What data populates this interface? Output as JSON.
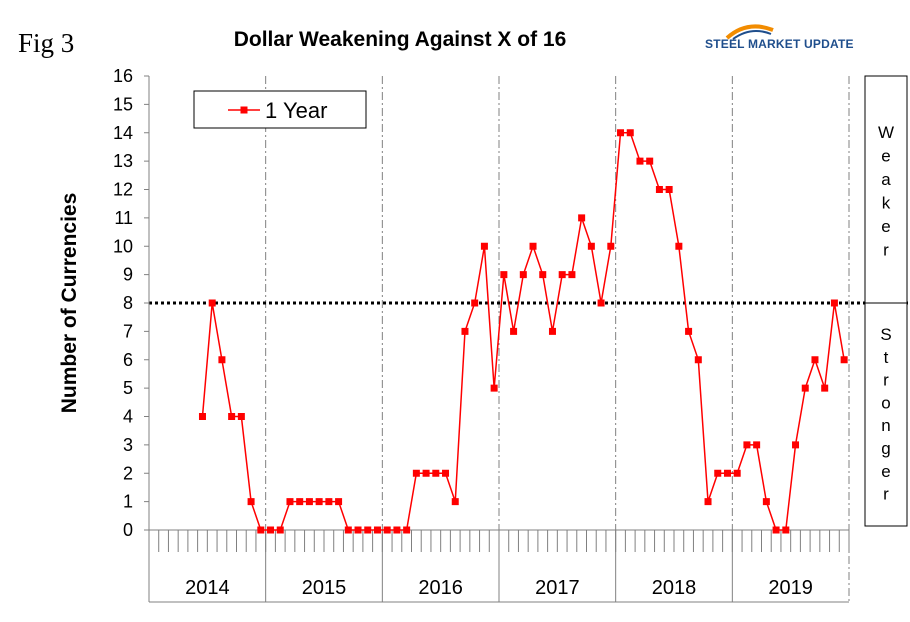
{
  "figure_label": "Fig 3",
  "logo": {
    "text": "STEEL MARKET UPDATE",
    "accent_color": "#f28c00",
    "brand_color": "#1f4e8c"
  },
  "side_panel": {
    "top_label": "Weaker",
    "bottom_label": "Stronger"
  },
  "colors": {
    "series": "#ff0000",
    "grid": "#808080",
    "reference_line": "#000000"
  },
  "chart_data": {
    "type": "line",
    "title": "Dollar Weakening Against X of 16",
    "ylabel": "Number of Currencies",
    "xlabel": "",
    "ylim": [
      0,
      16
    ],
    "y_ticks": [
      0,
      1,
      2,
      3,
      4,
      5,
      6,
      7,
      8,
      9,
      10,
      11,
      12,
      13,
      14,
      15,
      16
    ],
    "year_labels": [
      "2014",
      "2015",
      "2016",
      "2017",
      "2018",
      "2019"
    ],
    "months_per_year": 12,
    "reference_line": 8,
    "legend": {
      "label": "1 Year",
      "position": "top-left"
    },
    "series": [
      {
        "name": "1 Year",
        "start_month_index": 5,
        "values": [
          4,
          8,
          6,
          4,
          4,
          1,
          0,
          0,
          0,
          1,
          1,
          1,
          1,
          1,
          1,
          0,
          0,
          0,
          0,
          0,
          0,
          0,
          2,
          2,
          2,
          2,
          1,
          7,
          8,
          10,
          5,
          9,
          7,
          9,
          10,
          9,
          7,
          9,
          9,
          11,
          10,
          8,
          10,
          14,
          14,
          13,
          13,
          12,
          12,
          10,
          7,
          6,
          1,
          2,
          2,
          2,
          3,
          3,
          1,
          0,
          0,
          3,
          5,
          6,
          5,
          8,
          6
        ]
      }
    ]
  }
}
